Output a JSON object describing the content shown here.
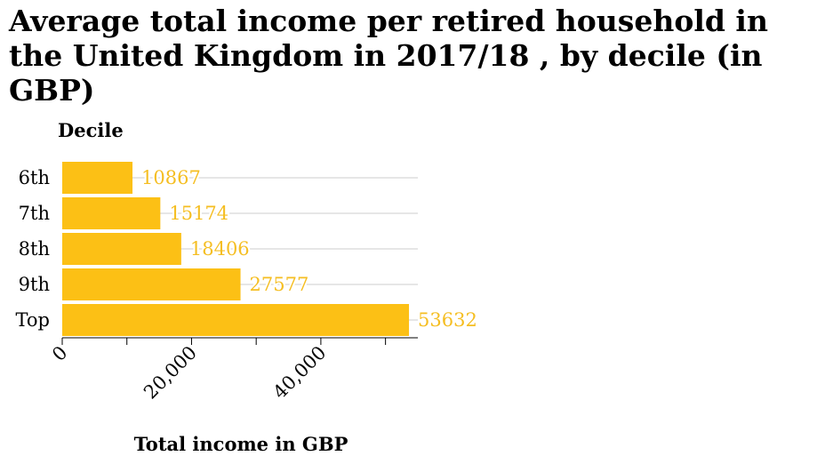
{
  "colors": {
    "bar": "#fcc015",
    "data_label": "#f5be22",
    "grid": "#cccccc",
    "axis": "#000000"
  },
  "chart_data": {
    "type": "bar",
    "orientation": "horizontal",
    "title": "Average total income per retired household in the United Kingdom in 2017/18 , by decile (in GBP)",
    "xlabel": "Total income in GBP",
    "ylabel": "Decile",
    "categories": [
      "6th",
      "7th",
      "8th",
      "9th",
      "Top"
    ],
    "values": [
      10867,
      15174,
      18406,
      27577,
      53632
    ],
    "xlim": [
      0,
      55000
    ],
    "x_ticks": [
      0,
      10000,
      20000,
      30000,
      40000,
      50000
    ],
    "x_tick_labels": [
      "0",
      "",
      "20,000",
      "",
      "40,000",
      ""
    ],
    "grid": "horizontal",
    "data_labels": true,
    "legend": "none"
  }
}
